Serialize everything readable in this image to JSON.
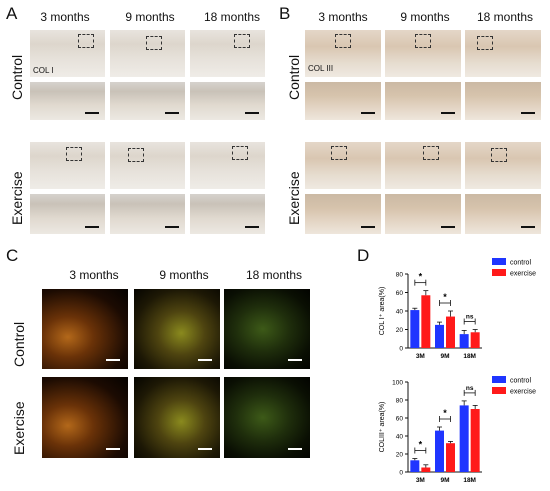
{
  "panels": {
    "A": {
      "label": "A",
      "cols": [
        "3 months",
        "9 months",
        "18 months"
      ],
      "rows": [
        "Control",
        "Exercise"
      ],
      "stain": "COL I"
    },
    "B": {
      "label": "B",
      "cols": [
        "3 months",
        "9 months",
        "18 months"
      ],
      "rows": [
        "Control",
        "Exercise"
      ],
      "stain": "COL III"
    },
    "C": {
      "label": "C",
      "cols": [
        "3 months",
        "9 months",
        "18 months"
      ],
      "rows": [
        "Control",
        "Exercise"
      ]
    },
    "D": {
      "label": "D"
    }
  },
  "colors": {
    "control": "#1f35ff",
    "exercise": "#ff1a1a"
  },
  "chart_data": [
    {
      "type": "bar",
      "categories": [
        "3M",
        "9M",
        "18M"
      ],
      "series": [
        {
          "name": "control",
          "values": [
            41,
            25,
            15
          ],
          "errors": [
            2,
            3,
            4
          ]
        },
        {
          "name": "exercise",
          "values": [
            57,
            34,
            17
          ],
          "errors": [
            5,
            6,
            3
          ]
        }
      ],
      "ylabel": "COL I⁺ area(%)",
      "ylim": [
        0,
        80
      ],
      "yticks": [
        "0",
        "20",
        "40",
        "60",
        "80"
      ],
      "significance": [
        "*",
        "*",
        "ns"
      ],
      "legend": "top-right"
    },
    {
      "type": "bar",
      "categories": [
        "3M",
        "9M",
        "18M"
      ],
      "series": [
        {
          "name": "control",
          "values": [
            13,
            46,
            74
          ],
          "errors": [
            2,
            4,
            5
          ]
        },
        {
          "name": "exercise",
          "values": [
            5,
            32,
            70
          ],
          "errors": [
            3,
            2,
            4
          ]
        }
      ],
      "ylabel": "COLIII⁺ area(%)",
      "ylim": [
        0,
        100
      ],
      "yticks": [
        "0",
        "20",
        "40",
        "60",
        "80",
        "100"
      ],
      "significance": [
        "*",
        "*",
        "ns"
      ],
      "legend": "top-right"
    }
  ]
}
